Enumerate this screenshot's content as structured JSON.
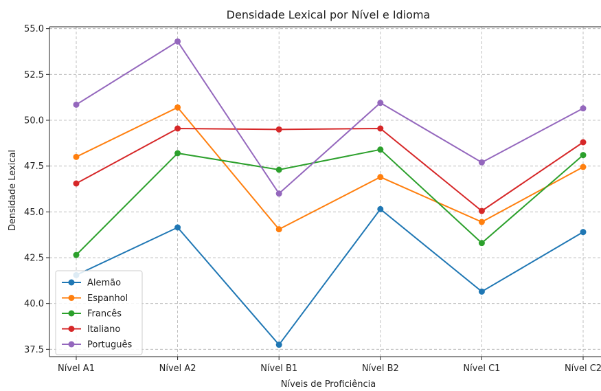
{
  "chart_data": {
    "type": "line",
    "title": "Densidade Lexical por Nível e Idioma",
    "xlabel": "Níveis de Proficiência",
    "ylabel": "Densidade Lexical",
    "categories": [
      "Nível A1",
      "Nível A2",
      "Nível B1",
      "Nível B2",
      "Nível C1",
      "Nível C2"
    ],
    "ylim": [
      37.1,
      55.1
    ],
    "yticks": [
      "37.5",
      "40.0",
      "42.5",
      "45.0",
      "47.5",
      "50.0",
      "52.5",
      "55.0"
    ],
    "ytick_values": [
      37.5,
      40.0,
      42.5,
      45.0,
      47.5,
      50.0,
      52.5,
      55.0
    ],
    "grid": true,
    "legend_position": "lower-left",
    "series": [
      {
        "name": "Alemão",
        "color": "#1f77b4",
        "values": [
          41.55,
          44.15,
          37.75,
          45.15,
          40.65,
          43.9
        ]
      },
      {
        "name": "Espanhol",
        "color": "#ff7f0e",
        "values": [
          48.0,
          50.7,
          44.05,
          46.9,
          44.45,
          47.45
        ]
      },
      {
        "name": "Francês",
        "color": "#2ca02c",
        "values": [
          42.65,
          48.2,
          47.3,
          48.4,
          43.3,
          48.1
        ]
      },
      {
        "name": "Italiano",
        "color": "#d62728",
        "values": [
          46.55,
          49.55,
          49.5,
          49.55,
          45.05,
          48.8
        ]
      },
      {
        "name": "Português",
        "color": "#9467bd",
        "values": [
          50.85,
          54.3,
          46.0,
          50.95,
          47.7,
          50.65
        ]
      }
    ]
  }
}
